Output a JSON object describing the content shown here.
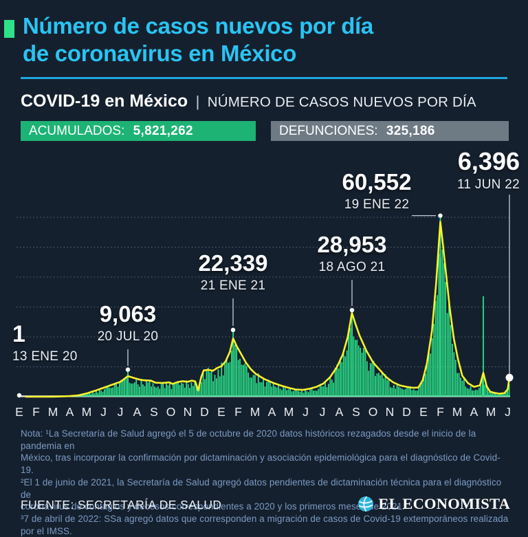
{
  "header": {
    "accent_square_color": "#2EE189",
    "title_line1": "Número de casos nuevos por día",
    "title_line2": "de coronavirus en México",
    "title_color": "#29C4F3",
    "rule_color": "#1EA8DD",
    "section_title": "COVID-19 en México",
    "section_sep": "|",
    "section_subtitle": "NÚMERO DE CASOS NUEVOS POR DÍA"
  },
  "badges": {
    "acumulados_label": "ACUMULADOS:",
    "acumulados_value": "5,821,262",
    "acumulados_bg": "#1DB375",
    "defunciones_label": "DEFUNCIONES:",
    "defunciones_value": "325,186",
    "defunciones_bg": "#6E7A84"
  },
  "chart_data": {
    "type": "bar",
    "title": "COVID-19 en México — número de casos nuevos por día",
    "ylabel": "casos nuevos por día",
    "ylim": [
      0,
      62000
    ],
    "y_gridlines": [
      10000,
      20000,
      30000,
      40000,
      50000,
      60000
    ],
    "grid": "dotted",
    "bar_color": "#2BE189",
    "line_color": "#F7F22C",
    "x_range": [
      "ENE 2020",
      "JUN 2022"
    ],
    "x_tick_labels": [
      "E",
      "F",
      "M",
      "A",
      "M",
      "J",
      "J",
      "A",
      "S",
      "O",
      "N",
      "D",
      "E",
      "F",
      "M",
      "A",
      "M",
      "J",
      "J",
      "A",
      "S",
      "O",
      "N",
      "D",
      "E",
      "F",
      "M",
      "A",
      "M",
      "J"
    ],
    "annotations": [
      {
        "value": 1,
        "value_label": "1",
        "date_label": "13 ENE 20"
      },
      {
        "value": 9063,
        "value_label": "9,063",
        "date_label": "20 JUL 20"
      },
      {
        "value": 22339,
        "value_label": "22,339",
        "date_label": "21 ENE 21"
      },
      {
        "value": 28953,
        "value_label": "28,953",
        "date_label": "18 AGO 21"
      },
      {
        "value": 60552,
        "value_label": "60,552",
        "date_label": "19 ENE 22"
      },
      {
        "value": 6396,
        "value_label": "6,396",
        "date_label": "11 JUN 22"
      }
    ],
    "daily_peaks": [
      {
        "month": 6.45,
        "value": 9063
      },
      {
        "month": 12.7,
        "value": 22339
      },
      {
        "month": 19.75,
        "value": 28953
      },
      {
        "month": 25.0,
        "value": 60552
      },
      {
        "month": 27.55,
        "value": 33600
      }
    ],
    "trend_7day_avg": [
      [
        0.4,
        0
      ],
      [
        1.5,
        10
      ],
      [
        2,
        30
      ],
      [
        2.5,
        90
      ],
      [
        3,
        200
      ],
      [
        3.5,
        450
      ],
      [
        4,
        1100
      ],
      [
        4.5,
        2000
      ],
      [
        5,
        3000
      ],
      [
        5.5,
        4000
      ],
      [
        6,
        5000
      ],
      [
        6.2,
        5800
      ],
      [
        6.45,
        6900
      ],
      [
        6.8,
        6300
      ],
      [
        7.1,
        5800
      ],
      [
        7.4,
        5500
      ],
      [
        7.8,
        5400
      ],
      [
        8.1,
        4700
      ],
      [
        8.5,
        4600
      ],
      [
        8.9,
        4800
      ],
      [
        9.1,
        4300
      ],
      [
        9.4,
        4900
      ],
      [
        9.7,
        5200
      ],
      [
        10,
        5000
      ],
      [
        10.25,
        5400
      ],
      [
        10.45,
        5100
      ],
      [
        10.62,
        2100
      ],
      [
        10.8,
        6500
      ],
      [
        10.95,
        8800
      ],
      [
        11.2,
        9000
      ],
      [
        11.5,
        8700
      ],
      [
        11.75,
        9600
      ],
      [
        12,
        10200
      ],
      [
        12.25,
        11800
      ],
      [
        12.5,
        15000
      ],
      [
        12.7,
        19500
      ],
      [
        12.9,
        17000
      ],
      [
        13.15,
        14500
      ],
      [
        13.45,
        11500
      ],
      [
        13.75,
        9200
      ],
      [
        14.05,
        7600
      ],
      [
        14.55,
        5900
      ],
      [
        15.05,
        4700
      ],
      [
        15.55,
        3700
      ],
      [
        16.05,
        2900
      ],
      [
        16.45,
        2400
      ],
      [
        16.85,
        2300
      ],
      [
        17.25,
        2700
      ],
      [
        17.65,
        3300
      ],
      [
        18.05,
        4400
      ],
      [
        18.45,
        6500
      ],
      [
        18.85,
        9800
      ],
      [
        19.2,
        14000
      ],
      [
        19.5,
        20000
      ],
      [
        19.75,
        28000
      ],
      [
        19.95,
        24500
      ],
      [
        20.2,
        20500
      ],
      [
        20.6,
        15500
      ],
      [
        21,
        11500
      ],
      [
        21.4,
        9000
      ],
      [
        21.8,
        6500
      ],
      [
        22.2,
        4800
      ],
      [
        22.6,
        3800
      ],
      [
        23,
        3300
      ],
      [
        23.4,
        3000
      ],
      [
        23.7,
        3100
      ],
      [
        23.95,
        5500
      ],
      [
        24.2,
        11000
      ],
      [
        24.5,
        22000
      ],
      [
        24.75,
        38000
      ],
      [
        25,
        58500
      ],
      [
        25.15,
        51000
      ],
      [
        25.35,
        40500
      ],
      [
        25.55,
        30000
      ],
      [
        25.8,
        19500
      ],
      [
        26.05,
        12500
      ],
      [
        26.3,
        7000
      ],
      [
        26.65,
        4500
      ],
      [
        27,
        3300
      ],
      [
        27.35,
        3800
      ],
      [
        27.55,
        8000
      ],
      [
        27.75,
        3500
      ],
      [
        27.95,
        1700
      ],
      [
        28.2,
        1300
      ],
      [
        28.5,
        1000
      ],
      [
        28.8,
        1200
      ],
      [
        29,
        2500
      ],
      [
        29.1,
        6396
      ]
    ]
  },
  "notes": {
    "color": "#7C9BC4",
    "lines": [
      "Nota: ¹La Secretaría de Salud agregó el 5 de octubre de 2020 datos históricos rezagados desde el inicio de la pandemia en",
      "México, tras incorporar la confirmación por dictaminación y asociación epidemiológica para el diagnóstico de Covid-19.",
      "²El 1 de junio de 2021, la Secretaría de Salud agregó datos pendientes de dictaminación técnica para el diagnóstico de",
      "coronavirus de contagios y decesos correspondientes a 2020 y los primeros meses de 2021.",
      "³7 de abril de 2022: SSa agregó datos que corresponden a migración de casos de Covid-19 extemporáneos realizada por el IMSS."
    ]
  },
  "footer": {
    "source": "FUENTE: SECRETARÍA DE SALUD",
    "brand": "EL ECONOMISTA",
    "brand_icon_color": "#2FB5DF"
  }
}
